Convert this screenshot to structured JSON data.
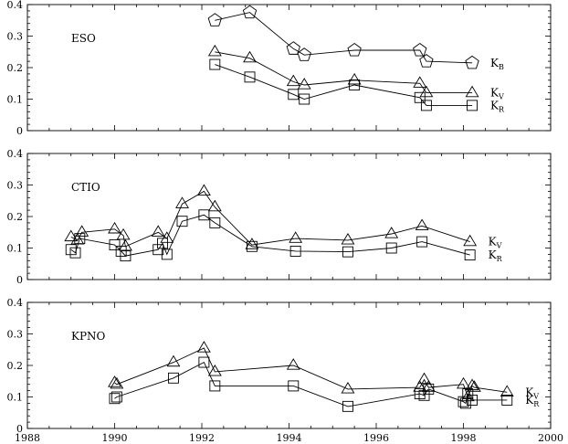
{
  "chart_data": [
    {
      "type": "line",
      "panel_label": "ESO",
      "xlim": [
        1988,
        2000
      ],
      "ylim": [
        0,
        0.4
      ],
      "x_ticks": [
        "1988",
        "1990",
        "1992",
        "1994",
        "1996",
        "1998",
        "2000"
      ],
      "y_ticks": [
        "0",
        "0.1",
        "0.2",
        "0.3",
        "0.4"
      ],
      "grid": false,
      "series": [
        {
          "name": "K_B",
          "label_main": "K",
          "label_sub": "B",
          "marker": "pentagon",
          "points": [
            [
              1992.3,
              0.35
            ],
            [
              1993.1,
              0.375
            ],
            [
              1994.1,
              0.26
            ],
            [
              1994.35,
              0.24
            ],
            [
              1995.5,
              0.255
            ],
            [
              1997.0,
              0.255
            ],
            [
              1997.15,
              0.22
            ],
            [
              1998.2,
              0.215
            ]
          ]
        },
        {
          "name": "K_V",
          "label_main": "K",
          "label_sub": "V",
          "marker": "triangle",
          "points": [
            [
              1992.3,
              0.25
            ],
            [
              1993.1,
              0.23
            ],
            [
              1994.1,
              0.155
            ],
            [
              1994.35,
              0.145
            ],
            [
              1995.5,
              0.16
            ],
            [
              1997.0,
              0.15
            ],
            [
              1997.15,
              0.12
            ],
            [
              1998.2,
              0.12
            ]
          ]
        },
        {
          "name": "K_R",
          "label_main": "K",
          "label_sub": "R",
          "marker": "square",
          "points": [
            [
              1992.3,
              0.21
            ],
            [
              1993.1,
              0.17
            ],
            [
              1994.1,
              0.115
            ],
            [
              1994.35,
              0.1
            ],
            [
              1995.5,
              0.145
            ],
            [
              1997.0,
              0.105
            ],
            [
              1997.15,
              0.08
            ],
            [
              1998.2,
              0.08
            ]
          ]
        }
      ]
    },
    {
      "type": "line",
      "panel_label": "CTIO",
      "xlim": [
        1988,
        2000
      ],
      "ylim": [
        0,
        0.4
      ],
      "x_ticks": [
        "1988",
        "1990",
        "1992",
        "1994",
        "1996",
        "1998",
        "2000"
      ],
      "y_ticks": [
        "0",
        "0.1",
        "0.2",
        "0.3",
        "0.4"
      ],
      "grid": false,
      "series": [
        {
          "name": "K_V",
          "label_main": "K",
          "label_sub": "V",
          "marker": "triangle",
          "points": [
            [
              1989.0,
              0.135
            ],
            [
              1989.15,
              0.125
            ],
            [
              1989.25,
              0.15
            ],
            [
              1990.0,
              0.16
            ],
            [
              1990.2,
              0.14
            ],
            [
              1990.25,
              0.105
            ],
            [
              1991.0,
              0.15
            ],
            [
              1991.2,
              0.13
            ],
            [
              1991.55,
              0.24
            ],
            [
              1992.05,
              0.28
            ],
            [
              1992.3,
              0.23
            ],
            [
              1993.15,
              0.11
            ],
            [
              1994.15,
              0.13
            ],
            [
              1995.35,
              0.125
            ],
            [
              1996.35,
              0.145
            ],
            [
              1997.05,
              0.17
            ],
            [
              1998.15,
              0.12
            ]
          ]
        },
        {
          "name": "K_R",
          "label_main": "K",
          "label_sub": "R",
          "marker": "square",
          "points": [
            [
              1989.0,
              0.095
            ],
            [
              1989.1,
              0.085
            ],
            [
              1989.2,
              0.13
            ],
            [
              1990.0,
              0.11
            ],
            [
              1990.15,
              0.09
            ],
            [
              1990.25,
              0.075
            ],
            [
              1991.0,
              0.095
            ],
            [
              1991.1,
              0.115
            ],
            [
              1991.2,
              0.08
            ],
            [
              1991.55,
              0.185
            ],
            [
              1992.05,
              0.205
            ],
            [
              1992.3,
              0.18
            ],
            [
              1993.15,
              0.105
            ],
            [
              1994.15,
              0.09
            ],
            [
              1995.35,
              0.088
            ],
            [
              1996.35,
              0.1
            ],
            [
              1997.05,
              0.12
            ],
            [
              1998.15,
              0.078
            ]
          ]
        }
      ]
    },
    {
      "type": "line",
      "panel_label": "KPNO",
      "xlim": [
        1988,
        2000
      ],
      "ylim": [
        0,
        0.4
      ],
      "x_ticks": [
        "1988",
        "1990",
        "1992",
        "1994",
        "1996",
        "1998",
        "2000"
      ],
      "y_ticks": [
        "0",
        "0.1",
        "0.2",
        "0.3",
        "0.4"
      ],
      "grid": false,
      "series": [
        {
          "name": "K_V",
          "label_main": "K",
          "label_sub": "V",
          "marker": "triangle",
          "points": [
            [
              1990.0,
              0.145
            ],
            [
              1990.05,
              0.14
            ],
            [
              1991.35,
              0.21
            ],
            [
              1992.05,
              0.255
            ],
            [
              1992.3,
              0.18
            ],
            [
              1994.1,
              0.2
            ],
            [
              1995.35,
              0.125
            ],
            [
              1997.0,
              0.13
            ],
            [
              1997.1,
              0.155
            ],
            [
              1997.2,
              0.13
            ],
            [
              1998.0,
              0.14
            ],
            [
              1998.1,
              0.1
            ],
            [
              1998.2,
              0.135
            ],
            [
              1998.25,
              0.13
            ],
            [
              1999.0,
              0.115
            ]
          ]
        },
        {
          "name": "K_R",
          "label_main": "K",
          "label_sub": "R",
          "marker": "square",
          "points": [
            [
              1990.0,
              0.095
            ],
            [
              1990.05,
              0.1
            ],
            [
              1991.35,
              0.16
            ],
            [
              1992.05,
              0.21
            ],
            [
              1992.3,
              0.135
            ],
            [
              1994.1,
              0.135
            ],
            [
              1995.35,
              0.07
            ],
            [
              1997.0,
              0.11
            ],
            [
              1997.1,
              0.105
            ],
            [
              1997.2,
              0.125
            ],
            [
              1998.0,
              0.085
            ],
            [
              1998.05,
              0.08
            ],
            [
              1998.1,
              0.11
            ],
            [
              1998.2,
              0.09
            ],
            [
              1999.0,
              0.09
            ]
          ]
        }
      ]
    }
  ]
}
